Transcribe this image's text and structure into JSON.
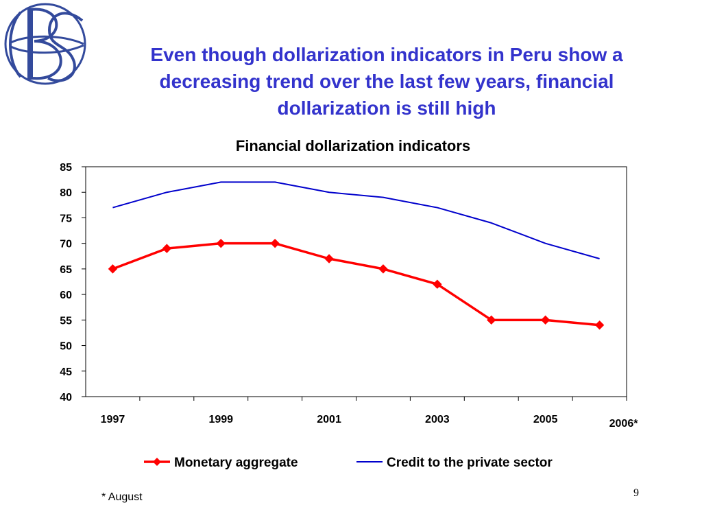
{
  "slide": {
    "title_lines": [
      "Even though dollarization indicators in Peru show a",
      "decreasing trend over the last few years, financial",
      "dollarization is still high"
    ],
    "footnote": "* August",
    "page_number": "9",
    "title_color": "#3333cc"
  },
  "logo": {
    "letters": "BRC",
    "color": "#334a9c"
  },
  "chart_data": {
    "type": "line",
    "title": "Financial dollarization indicators",
    "xlabel": "",
    "ylabel": "",
    "ylim": [
      40,
      85
    ],
    "yticks": [
      40,
      45,
      50,
      55,
      60,
      65,
      70,
      75,
      80,
      85
    ],
    "x": [
      1997,
      1998,
      1999,
      2000,
      2001,
      2002,
      2003,
      2004,
      2005,
      2006
    ],
    "x_tick_labels": [
      {
        "label": "1997",
        "index": 0
      },
      {
        "label": "1999",
        "index": 2
      },
      {
        "label": "2001",
        "index": 4
      },
      {
        "label": "2003",
        "index": 6
      },
      {
        "label": "2005",
        "index": 8
      },
      {
        "label": "2006*",
        "index": 9
      }
    ],
    "grid": false,
    "legend_position": "bottom",
    "series": [
      {
        "name": "Monetary aggregate",
        "color": "#ff0000",
        "marker": "diamond",
        "values": [
          65,
          69,
          70,
          70,
          67,
          65,
          62,
          55,
          55,
          54
        ]
      },
      {
        "name": "Credit to the private sector",
        "color": "#0000cc",
        "marker": "none",
        "values": [
          77,
          80,
          82,
          82,
          80,
          79,
          77,
          74,
          70,
          67
        ]
      }
    ]
  }
}
